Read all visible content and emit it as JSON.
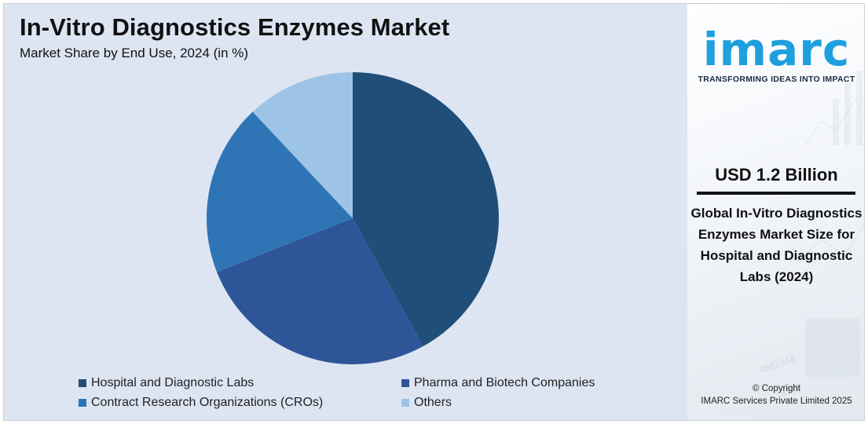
{
  "title": "In-Vitro Diagnostics Enzymes Market",
  "subtitle": "Market Share by End Use, 2024 (in %)",
  "chart_data": {
    "type": "pie",
    "title": "In-Vitro Diagnostics Enzymes Market",
    "subtitle": "Market Share by End Use, 2024 (in %)",
    "start_angle_deg": 0,
    "direction": "clockwise",
    "legend_position": "bottom",
    "slices": [
      {
        "label": "Hospital and Diagnostic Labs",
        "value": 42,
        "color": "#1f4e79"
      },
      {
        "label": "Pharma and Biotech Companies",
        "value": 27,
        "color": "#2e5597"
      },
      {
        "label": "Contract Research Organizations (CROs)",
        "value": 19,
        "color": "#2f75b5"
      },
      {
        "label": "Others",
        "value": 12,
        "color": "#9dc3e6"
      }
    ]
  },
  "legend": [
    {
      "label": "Hospital and Diagnostic Labs",
      "color": "#1f4e79"
    },
    {
      "label": "Pharma and Biotech Companies",
      "color": "#2e5597"
    },
    {
      "label": "Contract Research Organizations (CROs)",
      "color": "#2f75b5"
    },
    {
      "label": "Others",
      "color": "#9dc3e6"
    }
  ],
  "brand": {
    "logo": "imarc",
    "tagline": "TRANSFORMING IDEAS INTO IMPACT",
    "logo_color": "#1ea0de"
  },
  "highlight": {
    "value": "USD 1.2 Billion",
    "description": "Global In-Vitro Diagnostics Enzymes Market Size for Hospital and Diagnostic Labs (2024)"
  },
  "copyright": {
    "line1": "© Copyright",
    "line2": "IMARC Services Private Limited 2025"
  }
}
